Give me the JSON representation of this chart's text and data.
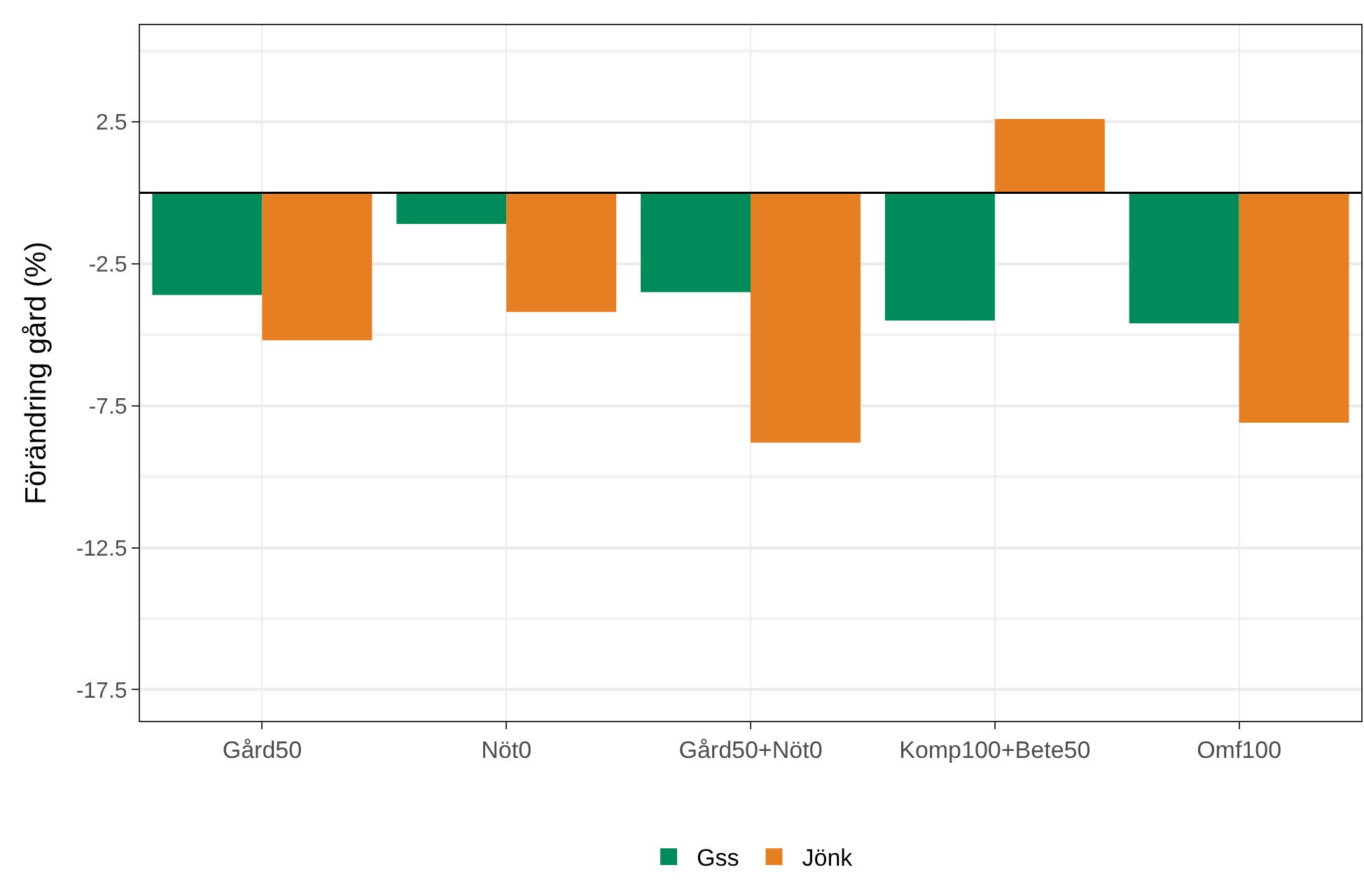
{
  "chart_data": {
    "type": "bar",
    "ylabel": "Förändring gård (%)",
    "categories": [
      "Gård50",
      "Nöt0",
      "Gård50+Nöt0",
      "Komp100+Bete50",
      "Omf100"
    ],
    "series": [
      {
        "name": "Gss",
        "color": "#008b5a",
        "values": [
          -3.6,
          -1.1,
          -3.5,
          -4.5,
          -4.6
        ]
      },
      {
        "name": "Jönk",
        "color": "#e67e22",
        "values": [
          -5.2,
          -4.2,
          -8.8,
          2.6,
          -8.1
        ]
      }
    ],
    "ylim": [
      -18.6,
      5.9
    ],
    "yticks": [
      2.5,
      -2.5,
      -7.5,
      -12.5,
      -17.5
    ],
    "ref_lines": [
      {
        "axis": "y",
        "value": 0,
        "color": "#000000"
      }
    ],
    "grid": true,
    "legend": "bottom"
  }
}
